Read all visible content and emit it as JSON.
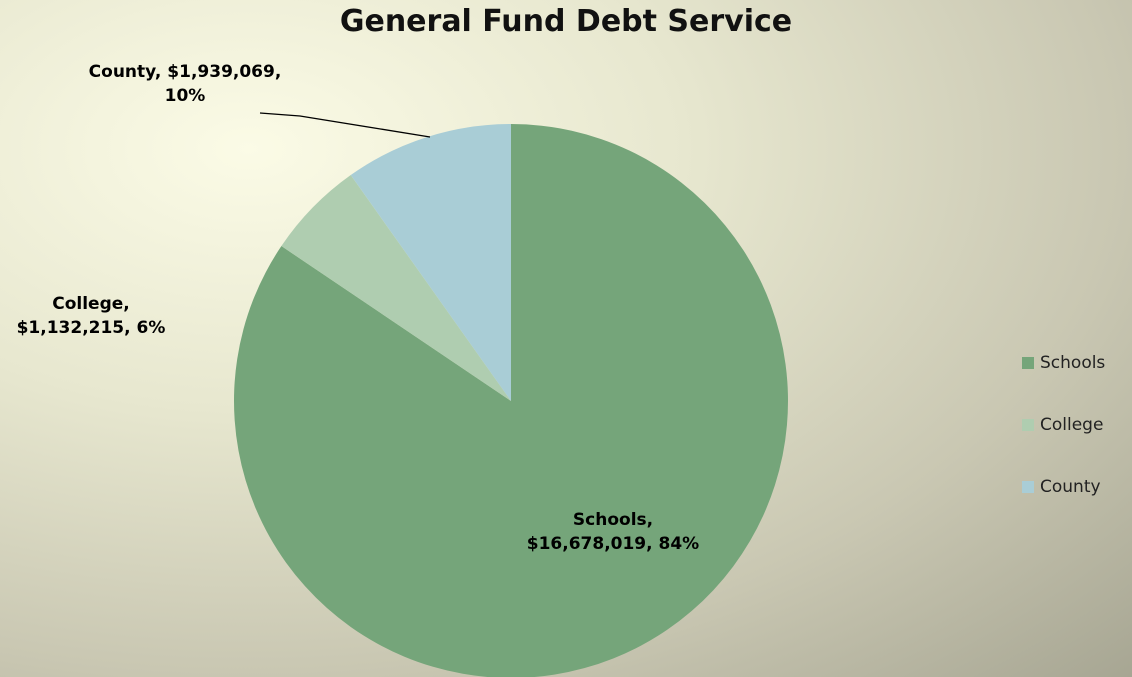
{
  "chart_data": {
    "type": "pie",
    "title": "General Fund Debt Service",
    "slices": [
      {
        "name": "Schools",
        "value": 16678019,
        "value_label": "$16,678,019",
        "percent_label": "84%",
        "color": "#75a57a"
      },
      {
        "name": "College",
        "value": 1132215,
        "value_label": "$1,132,215",
        "percent_label": "6%",
        "color": "#afcdb0"
      },
      {
        "name": "County",
        "value": 1939069,
        "value_label": "$1,939,069",
        "percent_label": "10%",
        "color": "#a9cdd6"
      }
    ],
    "data_labels": {
      "schools": {
        "line1": "Schools,",
        "line2": "$16,678,019, 84%"
      },
      "college": {
        "line1": "College,",
        "line2": "$1,132,215, 6%"
      },
      "county": {
        "line1": "County, $1,939,069,",
        "line2": "10%"
      }
    },
    "legend": {
      "placement": "right",
      "items": [
        "Schools",
        "College",
        "County"
      ]
    }
  }
}
